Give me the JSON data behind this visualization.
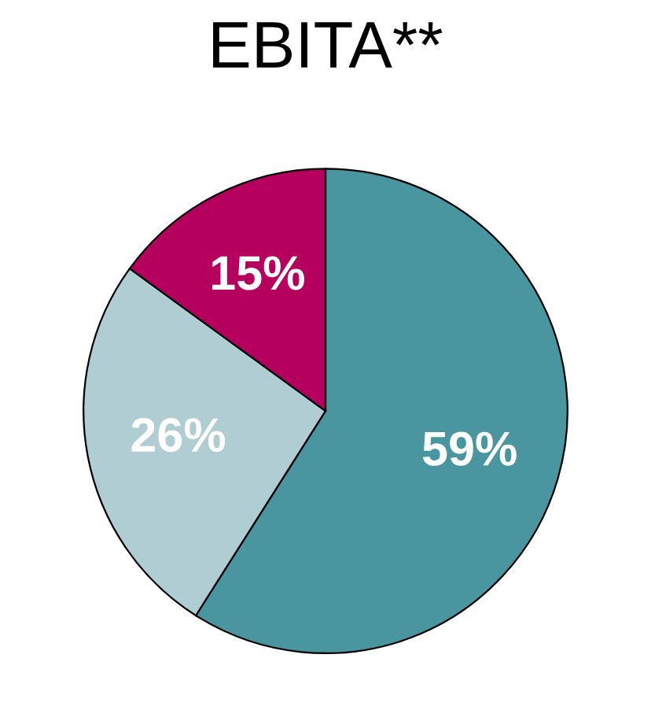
{
  "chart_data": {
    "type": "pie",
    "title": "EBITA**",
    "categories": [
      null,
      null,
      null
    ],
    "values": [
      59,
      26,
      15
    ],
    "colors": [
      "#4a96a0",
      "#afcdd2",
      "#b5005e"
    ],
    "value_labels": [
      "59%",
      "26%",
      "15%"
    ]
  }
}
